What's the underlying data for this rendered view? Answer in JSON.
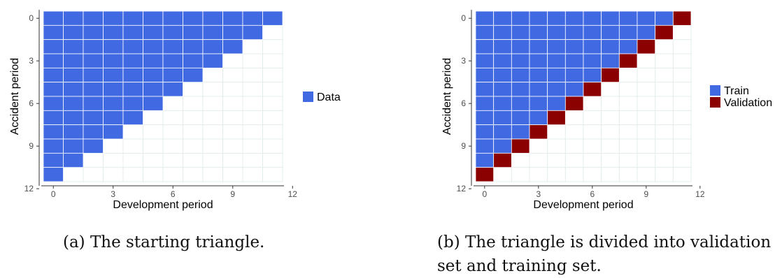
{
  "chart_data": [
    {
      "type": "heatmap",
      "xlabel": "Development period",
      "ylabel": "Accident period",
      "xlim": [
        -0.5,
        11.5
      ],
      "ylim": [
        -0.5,
        11.5
      ],
      "x_ticks": [
        0,
        3,
        6,
        9,
        12
      ],
      "y_ticks": [
        0,
        3,
        6,
        9,
        12
      ],
      "y_reversed": true,
      "grid": true,
      "legend_position": "right",
      "series": [
        {
          "name": "Data",
          "color": "#4169E1",
          "rule": "accident + development <= 11"
        }
      ],
      "caption": "(a) The starting triangle."
    },
    {
      "type": "heatmap",
      "xlabel": "Development period",
      "ylabel": "Accident period",
      "xlim": [
        -0.5,
        11.5
      ],
      "ylim": [
        -0.5,
        11.5
      ],
      "x_ticks": [
        0,
        3,
        6,
        9,
        12
      ],
      "y_ticks": [
        0,
        3,
        6,
        9,
        12
      ],
      "y_reversed": true,
      "grid": true,
      "legend_position": "right",
      "series": [
        {
          "name": "Train",
          "color": "#4169E1",
          "rule": "accident + development <= 10"
        },
        {
          "name": "Validation",
          "color": "#8B0000",
          "rule": "accident + development == 11"
        }
      ],
      "caption": "(b) The triangle is divided into validation set and training set."
    }
  ]
}
